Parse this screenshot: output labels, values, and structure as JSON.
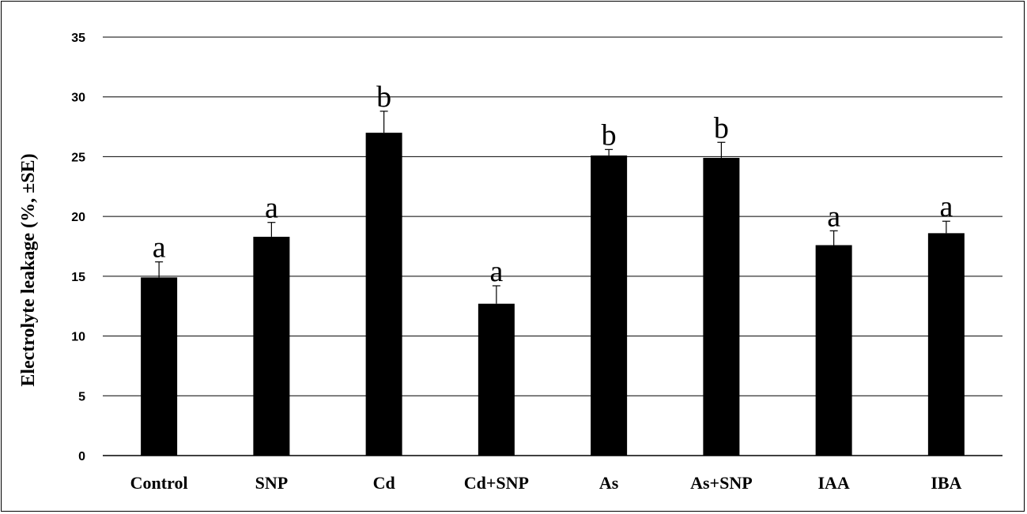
{
  "chart_data": {
    "type": "bar",
    "title": "",
    "xlabel": "",
    "ylabel": "Electrolyte leakage (%, ±SE)",
    "ylim": [
      0,
      35
    ],
    "yticks": [
      0,
      5,
      10,
      15,
      20,
      25,
      30,
      35
    ],
    "grid": true,
    "legend": "none",
    "bar_color": "#000000",
    "categories": [
      "Control",
      "SNP",
      "Cd",
      "Cd+SNP",
      "As",
      "As+SNP",
      "IAA",
      "IBA"
    ],
    "values": [
      14.9,
      18.3,
      27.0,
      12.7,
      25.1,
      24.9,
      17.6,
      18.6
    ],
    "errors": [
      1.3,
      1.2,
      1.8,
      1.5,
      0.5,
      1.3,
      1.2,
      1.0
    ],
    "significance_letters": [
      "a",
      "a",
      "b",
      "a",
      "b",
      "b",
      "a",
      "a"
    ]
  }
}
